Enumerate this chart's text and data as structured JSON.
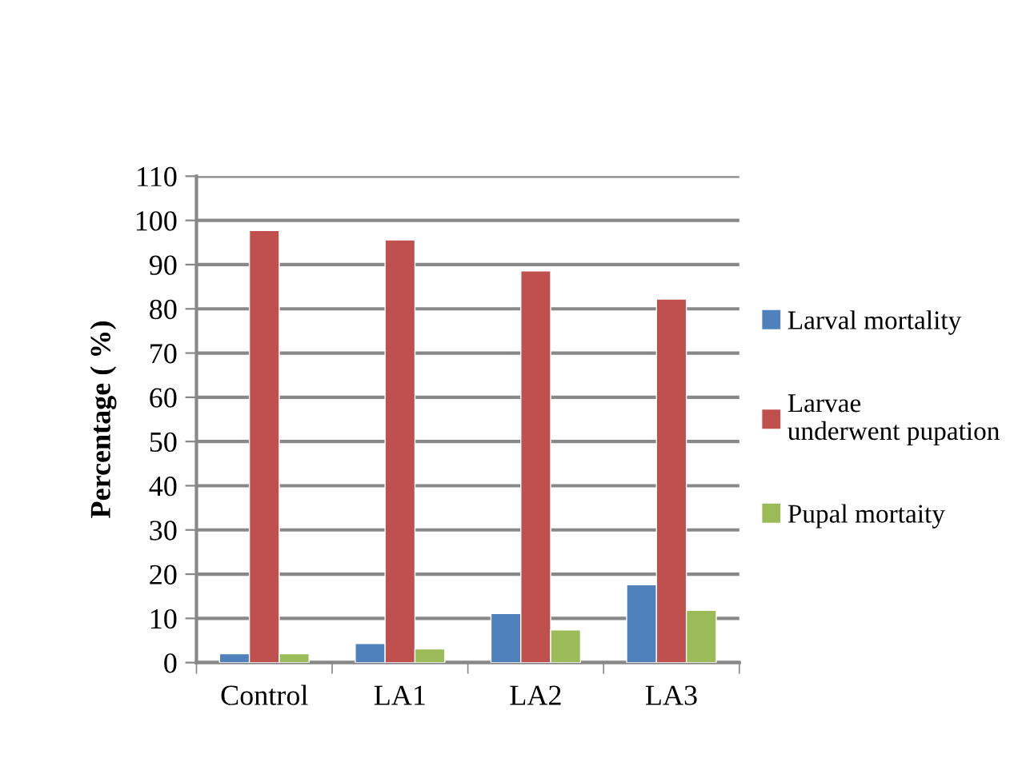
{
  "chart_data": {
    "type": "bar",
    "ylabel": "Percentage ( %)",
    "categories": [
      "Control",
      "LA1",
      "LA2",
      "LA3"
    ],
    "series": [
      {
        "name": "Larval mortality",
        "color": "#4f81bd",
        "values": [
          2.0,
          4.3,
          11.1,
          17.6
        ]
      },
      {
        "name": "Larvae underwent pupation",
        "color": "#c0504d",
        "values": [
          97.7,
          95.6,
          88.6,
          82.2
        ]
      },
      {
        "name": "Pupal mortaity",
        "color": "#9bbb59",
        "values": [
          2.0,
          3.1,
          7.4,
          11.8
        ]
      }
    ],
    "ylim": [
      0,
      110
    ],
    "yticks": [
      0,
      10,
      20,
      30,
      40,
      50,
      60,
      70,
      80,
      90,
      100,
      110
    ],
    "grid": "y",
    "legend": "right"
  }
}
